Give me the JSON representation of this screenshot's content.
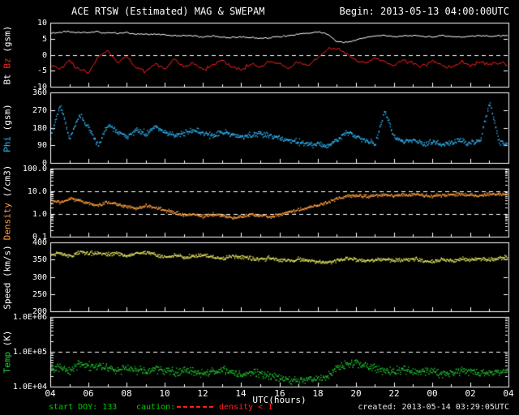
{
  "header": {
    "title": "ACE RTSW (Estimated) MAG & SWEPAM",
    "begin": "Begin: 2013-05-13 04:00:00UTC"
  },
  "footer": {
    "start_doy": "start DOY: 133",
    "caution": "caution:",
    "caution_note": "density < 1",
    "created": "created: 2013-05-14 03:29:05UTC"
  },
  "colors": {
    "background": "#000000",
    "axis": "#ffffff",
    "bt": "#ffffff",
    "bz": "#ff2020",
    "phi": "#33bbff",
    "density": "#ffa040",
    "speed": "#e8e862",
    "temp": "#22cc33",
    "footer_green": "#00cc00",
    "caution_red": "#ff2020"
  },
  "xaxis": {
    "label": "UTC(hours)",
    "tick_hours": [
      4,
      6,
      8,
      10,
      12,
      14,
      16,
      18,
      20,
      22,
      24,
      26,
      28
    ],
    "tick_labels": [
      "04",
      "06",
      "08",
      "10",
      "12",
      "14",
      "16",
      "18",
      "20",
      "22",
      "00",
      "02",
      "04"
    ]
  },
  "chart_data": {
    "type": "multi-panel timeseries (line + scatter)",
    "title": "ACE RTSW (Estimated) MAG & SWEPAM",
    "x_unit": "UTC hours, 2013-05-13 04:00 to 2013-05-14 04:00",
    "x": [
      4,
      4.5,
      5,
      5.5,
      6,
      6.5,
      7,
      7.5,
      8,
      8.5,
      9,
      9.5,
      10,
      10.5,
      11,
      11.5,
      12,
      12.5,
      13,
      13.5,
      14,
      14.5,
      15,
      15.5,
      16,
      16.5,
      17,
      17.5,
      18,
      18.5,
      19,
      19.5,
      20,
      20.5,
      21,
      21.5,
      22,
      22.5,
      23,
      23.5,
      24,
      24.5,
      25,
      25.5,
      26,
      26.5,
      27,
      27.5,
      28
    ],
    "panels": [
      {
        "id": "mag",
        "label_parts": [
          {
            "text": "Bt ",
            "color": "#ffffff"
          },
          {
            "text": "Bz",
            "color": "#ff2020"
          },
          {
            "text": " (gsm)",
            "color": "#ffffff"
          }
        ],
        "scale": "linear",
        "ylim": [
          -10,
          10
        ],
        "yticks": [
          {
            "value": 10,
            "label": "10"
          },
          {
            "value": 5,
            "label": "5"
          },
          {
            "value": 0,
            "label": "0"
          },
          {
            "value": -5,
            "label": "-5"
          },
          {
            "value": -10,
            "label": "-10"
          }
        ],
        "dashed": [
          0
        ],
        "series": [
          {
            "name": "Bt",
            "type": "line",
            "color": "#ffffff",
            "jitter": 0.35,
            "values": [
              6.8,
              7.0,
              7.2,
              7.0,
              6.8,
              7.2,
              6.9,
              6.6,
              6.8,
              6.4,
              6.2,
              6.4,
              6.1,
              5.9,
              6.0,
              5.8,
              5.6,
              5.8,
              5.5,
              5.4,
              5.6,
              5.3,
              5.2,
              5.4,
              5.6,
              6.0,
              6.4,
              6.8,
              7.0,
              6.6,
              4.2,
              3.8,
              4.6,
              5.4,
              5.8,
              6.0,
              5.7,
              5.9,
              6.1,
              5.8,
              5.6,
              5.9,
              5.7,
              5.5,
              5.8,
              6.0,
              5.7,
              5.9,
              6.0
            ]
          },
          {
            "name": "Bz",
            "type": "line",
            "color": "#ff2020",
            "jitter": 0.8,
            "values": [
              -3.5,
              -4.5,
              -2.0,
              -4.8,
              -5.5,
              -1.0,
              1.5,
              -2.5,
              -0.5,
              -4.0,
              -5.2,
              -3.0,
              -4.5,
              -1.5,
              -3.8,
              -2.2,
              -4.6,
              -3.2,
              -1.8,
              -3.5,
              -4.8,
              -2.6,
              -3.9,
              -1.9,
              -3.0,
              -4.2,
              -2.4,
              -3.6,
              -1.2,
              1.8,
              2.2,
              0.5,
              -1.5,
              -2.8,
              -1.0,
              -2.2,
              -3.4,
              -1.6,
              -2.8,
              -3.8,
              -2.0,
              -3.2,
              -4.0,
              -2.4,
              -3.4,
              -2.0,
              -3.0,
              -2.5,
              -3.2
            ]
          }
        ]
      },
      {
        "id": "phi",
        "label_parts": [
          {
            "text": "Phi",
            "color": "#33bbff"
          },
          {
            "text": " (gsm)",
            "color": "#ffffff"
          }
        ],
        "scale": "linear",
        "ylim": [
          0,
          360
        ],
        "yticks": [
          {
            "value": 360,
            "label": "360"
          },
          {
            "value": 270,
            "label": "270"
          },
          {
            "value": 180,
            "label": "180"
          },
          {
            "value": 90,
            "label": "90"
          },
          {
            "value": 0,
            "label": "0"
          }
        ],
        "dashed": [],
        "series": [
          {
            "name": "Phi",
            "type": "scatter",
            "color": "#33bbff",
            "jitter": 18,
            "values": [
              135,
              300,
              120,
              250,
              180,
              90,
              200,
              160,
              140,
              170,
              150,
              190,
              160,
              145,
              155,
              170,
              150,
              140,
              160,
              150,
              135,
              145,
              155,
              140,
              130,
              120,
              110,
              100,
              95,
              90,
              120,
              160,
              140,
              120,
              100,
              270,
              130,
              110,
              120,
              100,
              110,
              95,
              105,
              115,
              100,
              120,
              315,
              110,
              100
            ]
          }
        ]
      },
      {
        "id": "density",
        "label_parts": [
          {
            "text": "Density",
            "color": "#ffa040"
          },
          {
            "text": " (/cm3)",
            "color": "#ffffff"
          }
        ],
        "scale": "log",
        "ylim": [
          0.1,
          100
        ],
        "yticks": [
          {
            "value": 100,
            "label": "100.0"
          },
          {
            "value": 10,
            "label": "10.0"
          },
          {
            "value": 1,
            "label": "1.0"
          },
          {
            "value": 0.1,
            "label": "0.1"
          }
        ],
        "dashed": [
          10,
          1
        ],
        "series": [
          {
            "name": "Density",
            "type": "scatter",
            "color": "#ffa040",
            "jitter": 0.09,
            "values": [
              4.0,
              3.5,
              5.0,
              4.2,
              3.0,
              2.5,
              3.5,
              2.8,
              2.2,
              1.8,
              2.5,
              2.0,
              1.5,
              1.2,
              0.9,
              1.1,
              0.8,
              1.0,
              0.9,
              0.7,
              0.8,
              1.0,
              0.9,
              0.8,
              1.0,
              1.3,
              1.6,
              2.0,
              2.5,
              3.5,
              5.0,
              6.5,
              7.0,
              6.0,
              6.5,
              7.5,
              6.8,
              7.2,
              8.0,
              7.0,
              6.5,
              7.0,
              7.5,
              8.0,
              7.2,
              6.8,
              7.5,
              8.0,
              7.8
            ]
          }
        ]
      },
      {
        "id": "speed",
        "label_parts": [
          {
            "text": "Speed",
            "color": "#ffffff"
          },
          {
            "text": " (km/s)",
            "color": "#ffffff"
          }
        ],
        "scale": "linear",
        "ylim": [
          200,
          400
        ],
        "yticks": [
          {
            "value": 400,
            "label": "400"
          },
          {
            "value": 350,
            "label": "350"
          },
          {
            "value": 300,
            "label": "300"
          },
          {
            "value": 250,
            "label": "250"
          },
          {
            "value": 200,
            "label": "200"
          }
        ],
        "dashed": [],
        "series": [
          {
            "name": "Speed",
            "type": "scatter",
            "color": "#e8e862",
            "jitter": 7,
            "values": [
              365,
              370,
              360,
              375,
              368,
              372,
              365,
              370,
              362,
              368,
              372,
              365,
              360,
              365,
              358,
              362,
              365,
              360,
              355,
              360,
              358,
              355,
              352,
              356,
              350,
              348,
              352,
              348,
              345,
              342,
              350,
              355,
              352,
              348,
              350,
              352,
              348,
              350,
              352,
              348,
              345,
              350,
              348,
              352,
              350,
              355,
              352,
              356,
              358
            ]
          }
        ]
      },
      {
        "id": "temp",
        "label_parts": [
          {
            "text": "Temp",
            "color": "#22cc33"
          },
          {
            "text": " (K)",
            "color": "#ffffff"
          }
        ],
        "scale": "log",
        "ylim": [
          10000,
          1000000
        ],
        "yticks": [
          {
            "value": 1000000,
            "label": "1.0E+06"
          },
          {
            "value": 100000,
            "label": "1.0E+05"
          },
          {
            "value": 10000,
            "label": "1.0E+04"
          }
        ],
        "dashed": [
          100000
        ],
        "series": [
          {
            "name": "Temp",
            "type": "scatter",
            "color": "#22cc33",
            "jitter": 0.14,
            "values": [
              35000,
              40000,
              30000,
              45000,
              38000,
              42000,
              35000,
              30000,
              36000,
              32000,
              28000,
              34000,
              30000,
              26000,
              32000,
              28000,
              24000,
              28000,
              30000,
              26000,
              22000,
              26000,
              24000,
              20000,
              18000,
              16000,
              15000,
              18000,
              16000,
              20000,
              35000,
              45000,
              50000,
              40000,
              35000,
              30000,
              28000,
              32000,
              26000,
              30000,
              28000,
              24000,
              26000,
              30000,
              28000,
              24000,
              26000,
              28000,
              30000
            ]
          }
        ]
      }
    ]
  }
}
